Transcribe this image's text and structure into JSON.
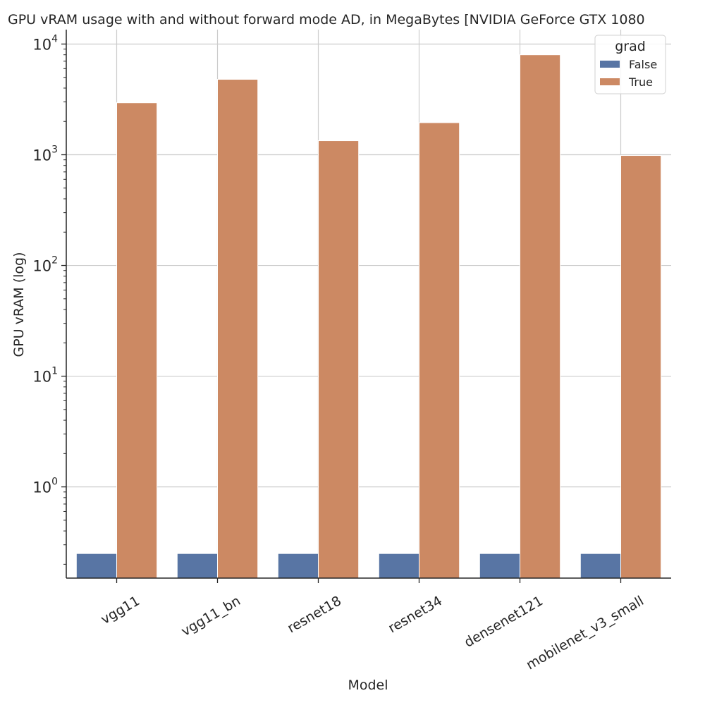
{
  "chart_data": {
    "type": "bar",
    "title": "GPU vRAM usage with and without forward mode AD, in MegaBytes [NVIDIA GeForce GTX 1080",
    "xlabel": "Model",
    "ylabel": "GPU vRAM (log)",
    "yscale": "log",
    "ylim": [
      0.15,
      13500
    ],
    "yticks": [
      {
        "value": 1,
        "base": "10",
        "exp": "0"
      },
      {
        "value": 10,
        "base": "10",
        "exp": "1"
      },
      {
        "value": 100,
        "base": "10",
        "exp": "2"
      },
      {
        "value": 1000,
        "base": "10",
        "exp": "3"
      },
      {
        "value": 10000,
        "base": "10",
        "exp": "4"
      }
    ],
    "grid": true,
    "categories": [
      "vgg11",
      "vgg11_bn",
      "resnet18",
      "resnet34",
      "densenet121",
      "mobilenet_v3_small"
    ],
    "series": [
      {
        "name": "False",
        "color": "#5875a4",
        "values": [
          0.25,
          0.25,
          0.25,
          0.25,
          0.25,
          0.25
        ]
      },
      {
        "name": "True",
        "color": "#cc8963",
        "values": [
          2950,
          4800,
          1340,
          1950,
          8000,
          985
        ]
      }
    ],
    "legend": {
      "title": "grad",
      "placement": "top-right"
    }
  }
}
